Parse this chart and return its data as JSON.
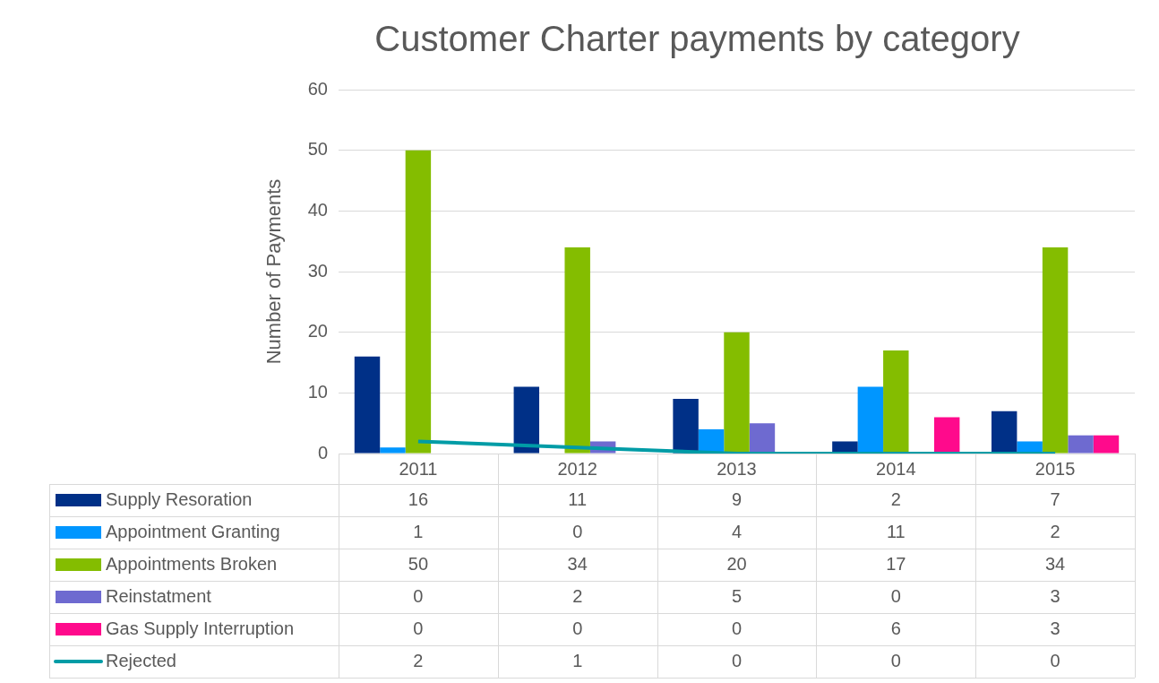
{
  "chart_data": {
    "type": "bar",
    "title": "Customer Charter payments by category",
    "ylabel": "Number of Payments",
    "categories": [
      "2011",
      "2012",
      "2013",
      "2014",
      "2015"
    ],
    "series": [
      {
        "name": "Supply Resoration",
        "color": "#003087",
        "values": [
          16,
          11,
          9,
          2,
          7
        ]
      },
      {
        "name": "Appointment Granting",
        "color": "#0096ff",
        "values": [
          1,
          0,
          4,
          11,
          2
        ]
      },
      {
        "name": "Appointments Broken",
        "color": "#84bd00",
        "values": [
          50,
          34,
          20,
          17,
          34
        ]
      },
      {
        "name": "Reinstatment",
        "color": "#6e6ad0",
        "values": [
          0,
          2,
          5,
          0,
          3
        ]
      },
      {
        "name": "Gas Supply Interruption",
        "color": "#ff0a8c",
        "values": [
          0,
          0,
          0,
          6,
          3
        ]
      },
      {
        "name": "Rejected",
        "type": "line",
        "color": "#009ca6",
        "values": [
          2,
          1,
          0,
          0,
          0
        ]
      }
    ],
    "ylim": [
      0,
      60
    ],
    "yticks": [
      0,
      10,
      20,
      30,
      40,
      50,
      60
    ],
    "grid": "y",
    "legend": "bottom",
    "data_labels": true,
    "marker": "none"
  }
}
